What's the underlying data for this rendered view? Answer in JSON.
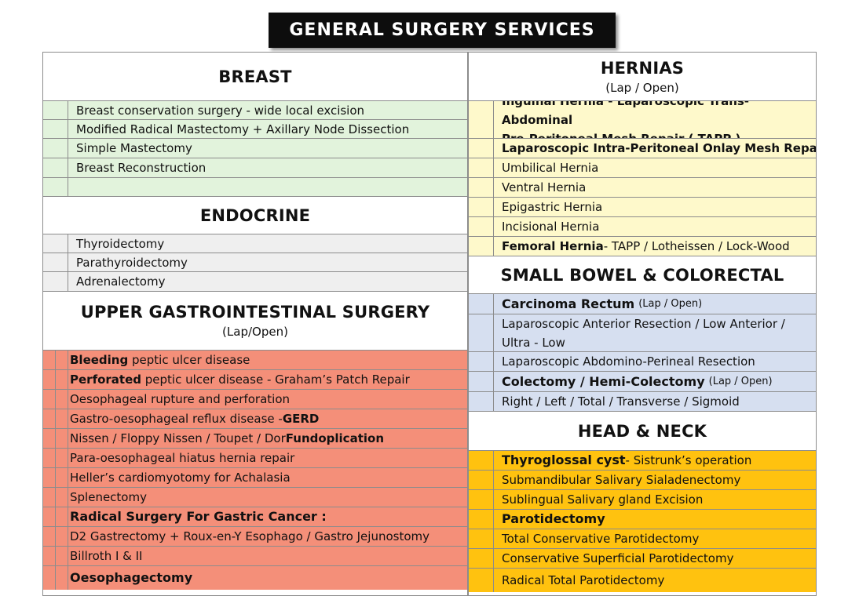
{
  "title": "GENERAL SURGERY SERVICES",
  "breast": {
    "title": "BREAST",
    "items": [
      "Breast conservation surgery - wide local excision",
      "Modified Radical Mastectomy + Axillary Node Dissection",
      "Simple Mastectomy",
      "Breast Reconstruction"
    ]
  },
  "endocrine": {
    "title": "ENDOCRINE",
    "items": [
      "Thyroidectomy",
      "Parathyroidectomy",
      "Adrenalectomy"
    ]
  },
  "ugi": {
    "title": "UPPER GASTROINTESTINAL SURGERY",
    "subtitle": "(Lap/Open)",
    "bleeding_bold": "Bleeding",
    "bleeding_rest": "peptic ulcer disease",
    "perforated_bold": "Perforated",
    "perforated_rest": "peptic ulcer disease - Graham’s Patch Repair",
    "oesophageal_rupture": "Oesophageal rupture and perforation",
    "gerd_rest": "Gastro-oesophageal reflux disease - ",
    "gerd_bold": "GERD",
    "fundo_rest": "Nissen / Floppy Nissen / Toupet / Dor ",
    "fundo_bold": "Fundoplication",
    "hiatus": "Para-oesophageal hiatus hernia repair",
    "heller": "Heller’s cardiomyotomy for Achalasia",
    "splenectomy": "Splenectomy",
    "radical": "Radical  Surgery  For Gastric Cancer :",
    "d2": "D2 Gastrectomy + Roux-en-Y Esophago / Gastro Jejunostomy",
    "billroth": "Billroth I & II",
    "oesophagectomy": "Oesophagectomy"
  },
  "hernias": {
    "title": "HERNIAS",
    "subtitle": "(Lap / Open)",
    "inguinal_bold": "Inguinal Hernia",
    "inguinal_rest": " - Laparoscopic Trans-Abdominal",
    "inguinal_line2": "Pre-Peritoneal Mesh Repair ( TAPP )",
    "ipom": "Laparoscopic Intra-Peritoneal Onlay Mesh Repair",
    "umbilical": "Umbilical Hernia",
    "ventral": "Ventral Hernia",
    "epigastric": "Epigastric Hernia",
    "incisional": "Incisional Hernia",
    "femoral_bold": "Femoral Hernia",
    "femoral_rest": " - TAPP / Lotheissen / Lock-Wood"
  },
  "colorectal": {
    "title": "SMALL BOWEL & COLORECTAL",
    "ca_rectum_bold": "Carcinoma Rectum",
    "ca_rectum_sub": "(Lap / Open)",
    "anterior": "Laparoscopic Anterior Resection / Low Anterior / Ultra - Low",
    "apr": "Laparoscopic Abdomino-Perineal Resection",
    "colectomy_bold": "Colectomy / Hemi-Colectomy",
    "colectomy_sub": "(Lap / Open)",
    "sides": "Right / Left / Total / Transverse / Sigmoid"
  },
  "head_neck": {
    "title": "HEAD & NECK",
    "thyroglossal_bold": "Thyroglossal cyst",
    "thyroglossal_rest": " - Sistrunk’s operation",
    "submandibular": "Submandibular Salivary Sialadenectomy",
    "sublingual": "Sublingual Salivary gland Excision",
    "parotidectomy": "Parotidectomy",
    "total_cons": "Total Conservative Parotidectomy",
    "cons_sup": "Conservative Superficial Parotidectomy",
    "radical_total": "Radical Total Parotidectomy"
  }
}
